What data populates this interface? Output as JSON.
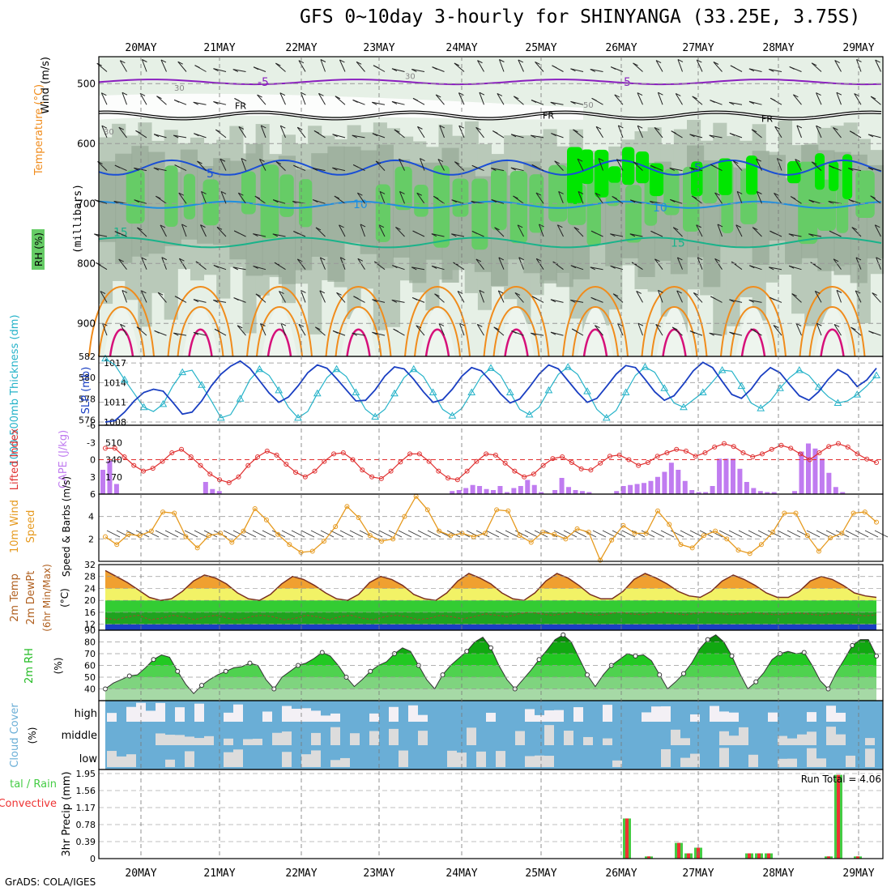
{
  "title": "GFS 0~10day 3-hourly for SHINYANGA (33.25E, 3.75S)",
  "credit": "GrADS: COLA/IGES",
  "colors": {
    "rh_light": "#e6f0e6",
    "rh_mid": "#b9c9b9",
    "rh_dark": "#95a895",
    "rh_green": "#66cc66",
    "rh_bright": "#00e600",
    "temp_purple": "#8a1fbf",
    "temp_blue": "#1a4fd6",
    "temp_lblue": "#1f8fe0",
    "temp_teal": "#19b38a",
    "temp_orange": "#f08c1c",
    "temp_pink": "#d6107a",
    "thickness": "#26b3c9",
    "slp": "#1a3fc2",
    "lifted": "#e03030",
    "cape": "#c07cf0",
    "wind": "#e69a1f",
    "t2m_band_yellow": "#f2f266",
    "t2m_band_green": "#33cc33",
    "t2m_band_dgreen": "#1fa31f",
    "rh2m": "#22bb22",
    "cloud": "#6aaed6",
    "cloud_clear": "#dcdcdc",
    "rain_total": "#44cc44",
    "rain_conv": "#ee3333"
  },
  "chart_data": [
    {
      "panel": "upper-air",
      "type": "heatmap",
      "x_labels": [
        "20MAY",
        "21MAY",
        "22MAY",
        "23MAY",
        "24MAY",
        "25MAY",
        "26MAY",
        "27MAY",
        "28MAY",
        "29MAY"
      ],
      "ylabel": "(millibars)",
      "yticks": [
        500,
        600,
        700,
        800,
        900
      ],
      "ylim": [
        955,
        455
      ],
      "side_labels": [
        "Wind (m/s)",
        "Temperature (°C)",
        "RH (%)"
      ],
      "contour_labels": [
        "-5",
        "FR",
        "5",
        "10",
        "15",
        "30",
        "50"
      ],
      "isotherms": [
        {
          "name": "-5",
          "level_mb": 497
        },
        {
          "name": "FR",
          "level_mb": 553
        },
        {
          "name": "5",
          "level_mb": 640
        },
        {
          "name": "10",
          "level_mb": 702
        },
        {
          "name": "15",
          "level_mb": 765
        }
      ]
    },
    {
      "panel": "thickness-slp",
      "type": "line",
      "left_label": "1000-500mb Thickness (dm)",
      "right_label": "SLP (mb)",
      "left_ticks": [
        576,
        578,
        580,
        582
      ],
      "right_ticks": [
        1008,
        1011,
        1014,
        1017
      ],
      "series": [
        {
          "name": "Thickness",
          "ylim": [
            575.5,
            582
          ],
          "values": [
            581.8,
            581.2,
            579.8,
            578.5,
            577.2,
            576.8,
            577.5,
            579.2,
            580.5,
            580.7,
            579.3,
            577.8,
            576.2,
            576.5,
            578,
            579.8,
            580.8,
            580.2,
            578.8,
            577.2,
            576.2,
            576.8,
            578.5,
            580,
            580.8,
            580.1,
            578.6,
            577,
            576.3,
            577,
            578.5,
            580,
            580.8,
            580.1,
            578.6,
            577,
            576.4,
            577.1,
            578.6,
            580.1,
            580.9,
            580.2,
            578.6,
            577,
            576.5,
            577.2,
            578.8,
            580.3,
            581,
            580.3,
            578.7,
            577,
            576.2,
            576.9,
            578.6,
            580.2,
            581,
            580.5,
            579,
            577.6,
            577.2,
            577.9,
            578.6,
            579.6,
            580.7,
            580.6,
            579.2,
            577.6,
            577.1,
            577.8,
            579,
            580,
            580.7,
            580.2,
            579.1,
            578.2,
            577.6,
            577.8,
            578.4,
            579.2,
            580.2
          ]
        },
        {
          "name": "SLP",
          "ylim": [
            1007.5,
            1018
          ],
          "values": [
            1008,
            1008.2,
            1009.5,
            1011.2,
            1012.5,
            1013,
            1012.7,
            1011,
            1009.2,
            1009.5,
            1011.2,
            1013.5,
            1015.3,
            1016.5,
            1017.3,
            1016.2,
            1014.3,
            1012.4,
            1011,
            1011.8,
            1013.5,
            1015.5,
            1016.7,
            1016.2,
            1014.6,
            1012.9,
            1011.2,
            1011.3,
            1012.9,
            1015,
            1016.4,
            1016.1,
            1014.5,
            1012.6,
            1011,
            1011.4,
            1013,
            1015,
            1016.3,
            1015.8,
            1014.2,
            1012.3,
            1010.9,
            1011.5,
            1013.3,
            1015.3,
            1016.7,
            1016.1,
            1014.3,
            1012.5,
            1011,
            1011.6,
            1013.4,
            1015.3,
            1016.6,
            1016.3,
            1014.5,
            1012.6,
            1011.3,
            1012,
            1013.8,
            1015.8,
            1017.1,
            1016.3,
            1014.2,
            1012.2,
            1011.6,
            1013,
            1015,
            1016.3,
            1015.5,
            1013.7,
            1012,
            1011.3,
            1012.6,
            1014.5,
            1016,
            1015.2,
            1013.4,
            1014.4,
            1016.2
          ]
        }
      ]
    },
    {
      "panel": "lifted-cape",
      "type": "bar",
      "left_label": "Lifted Index",
      "right_label": "CAPE (J/kg)",
      "left_ticks": [
        -6,
        -3,
        0,
        3,
        6
      ],
      "right_ticks": [
        170,
        340,
        510
      ],
      "series": [
        {
          "name": "CAPE",
          "ylim": [
            0,
            680
          ],
          "values": [
            240,
            330,
            100,
            0,
            0,
            0,
            0,
            0,
            0,
            0,
            0,
            0,
            0,
            0,
            0,
            120,
            50,
            30,
            0,
            0,
            0,
            0,
            0,
            0,
            0,
            0,
            0,
            0,
            0,
            0,
            0,
            0,
            0,
            0,
            0,
            0,
            0,
            0,
            0,
            0,
            0,
            0,
            0,
            0,
            0,
            0,
            0,
            0,
            0,
            0,
            0,
            30,
            40,
            60,
            90,
            80,
            50,
            40,
            80,
            20,
            60,
            80,
            140,
            90,
            20,
            0,
            40,
            160,
            70,
            40,
            30,
            20,
            0,
            0,
            0,
            30,
            80,
            90,
            100,
            110,
            130,
            170,
            220,
            310,
            240,
            130,
            40,
            20,
            20,
            80,
            350,
            350,
            350,
            250,
            120,
            60,
            30,
            20,
            20,
            0,
            0,
            30,
            420,
            500,
            450,
            350,
            210,
            70,
            20,
            0,
            0,
            0,
            0,
            0
          ]
        },
        {
          "name": "Lifted Index",
          "ylim": [
            6,
            -6
          ],
          "values": [
            -2,
            -2,
            -0.5,
            1,
            2,
            1.5,
            0.3,
            -1.2,
            -1.8,
            -0.5,
            1,
            2.5,
            3.5,
            4,
            3,
            1,
            -0.5,
            -1.5,
            -0.8,
            0.8,
            2.2,
            3,
            2,
            0.3,
            -1,
            -1.2,
            0,
            1.8,
            3,
            3.3,
            2,
            0.4,
            -1,
            -1,
            0.3,
            2,
            3.2,
            3.5,
            2,
            0.3,
            -1,
            -0.8,
            0.6,
            2,
            3,
            2.5,
            1,
            -0.2,
            -0.5,
            0.5,
            1.6,
            1.8,
            0.6,
            -0.6,
            -0.8,
            0,
            1,
            0.5,
            -0.6,
            -1.2,
            -1.8,
            -1.5,
            -0.6,
            -1.2,
            -2.2,
            -2.8,
            -2.3,
            -1.2,
            -0.5,
            -1,
            -1.8,
            -2.5,
            -2,
            -1,
            0,
            -1.2,
            -2.3,
            -2.8,
            -2.2,
            -1,
            -0.1,
            0.5
          ]
        }
      ]
    },
    {
      "panel": "wind10m",
      "type": "line",
      "left_label": "10m Wind",
      "right_label": "Speed & Barbs (m/s)",
      "right_ticks": [
        2,
        4
      ],
      "series": [
        {
          "name": "Speed",
          "ylim": [
            0,
            6
          ],
          "values": [
            2.2,
            1.5,
            2.4,
            2.3,
            2.7,
            4.4,
            4.3,
            2.2,
            1.2,
            2.3,
            2.5,
            1.7,
            2.7,
            4.7,
            3.7,
            2.4,
            1.5,
            0.8,
            0.9,
            1.8,
            3.1,
            4.9,
            3.9,
            2.3,
            1.8,
            2,
            4,
            5.8,
            4.6,
            2.7,
            2.3,
            2.5,
            2.2,
            2.5,
            4.6,
            4.5,
            2.3,
            1.7,
            2.6,
            2.4,
            2,
            2.9,
            2.6,
            0.1,
            1.9,
            3.2,
            2.5,
            2.5,
            4.5,
            3.3,
            1.5,
            1.2,
            2.3,
            2.7,
            2,
            1,
            0.7,
            1.5,
            2.6,
            4.3,
            4.3,
            2.3,
            0.9,
            2.1,
            2.5,
            4.3,
            4.4,
            3.5
          ]
        }
      ]
    },
    {
      "panel": "temp2m",
      "type": "area",
      "left_label": "2m Temp / 2m DewPt / (6hr Min/Max) (°C)",
      "yticks": [
        12,
        16,
        20,
        24,
        28,
        32
      ],
      "series": [
        {
          "name": "2m Temp",
          "ylim": [
            10,
            32
          ],
          "values": [
            30,
            28,
            26,
            23.5,
            21,
            20,
            20.5,
            23,
            26.5,
            28.5,
            27.5,
            25.5,
            22.5,
            20.5,
            20,
            22,
            25.5,
            28,
            27,
            25,
            22.5,
            20.5,
            20,
            22,
            26,
            28,
            27,
            25,
            22,
            20.5,
            20,
            22.5,
            26.5,
            29,
            27.5,
            25.5,
            22.5,
            20.5,
            20,
            22.5,
            26.5,
            29,
            27.5,
            25,
            22,
            20.5,
            20.5,
            23,
            27,
            29,
            27.5,
            25.5,
            23,
            21.5,
            21,
            23,
            26.5,
            28.5,
            27,
            25,
            22.5,
            21,
            21,
            23,
            26.5,
            28,
            27,
            25,
            22.5,
            21.5,
            21
          ]
        },
        {
          "name": "2m DewPt",
          "ylim": [
            10,
            32
          ],
          "values": [
            14,
            13.5,
            14.5,
            15,
            13.5,
            14,
            15,
            14.5,
            13.5,
            14.5,
            15,
            14,
            13.5,
            14.5,
            15,
            14.5,
            13.5,
            14,
            15,
            14.5,
            13.5,
            14.5,
            15,
            14,
            13.5,
            14.5,
            15,
            14.5,
            13.5,
            14,
            15,
            14.5,
            13.8,
            14.5,
            15.5,
            15,
            14.5,
            15.5,
            16,
            15.5,
            15,
            15.5,
            16,
            15.5,
            15,
            15.5,
            16,
            15.5,
            15.2,
            15.8,
            16,
            15.5,
            15.2,
            15.8,
            16,
            15.6,
            15.2,
            15.5,
            16,
            15.5,
            15.2,
            15.5,
            15.8,
            15.4,
            15,
            15.5,
            15.7,
            15.2,
            14.8,
            15.2
          ]
        }
      ]
    },
    {
      "panel": "rh2m",
      "type": "area",
      "left_label": "2m RH (%)",
      "yticks": [
        40,
        50,
        60,
        70,
        80,
        90
      ],
      "series": [
        {
          "name": "2m RH",
          "ylim": [
            30,
            90
          ],
          "values": [
            40,
            45,
            48,
            51,
            52,
            58,
            65,
            69,
            67,
            55,
            44,
            36,
            43,
            48,
            52,
            55,
            58,
            59,
            62,
            60,
            48,
            40,
            50,
            55,
            60,
            62,
            66,
            71,
            68,
            60,
            50,
            42,
            48,
            55,
            60,
            63,
            70,
            75,
            72,
            60,
            48,
            40,
            52,
            60,
            66,
            72,
            80,
            84,
            75,
            60,
            48,
            40,
            48,
            56,
            65,
            73,
            82,
            86,
            80,
            66,
            52,
            42,
            52,
            60,
            65,
            70,
            68,
            69,
            64,
            52,
            40,
            46,
            53,
            62,
            74,
            82,
            86,
            80,
            68,
            53,
            40,
            46,
            54,
            65,
            70,
            72,
            70,
            71,
            60,
            47,
            40,
            54,
            65,
            77,
            82,
            82,
            68
          ]
        }
      ]
    },
    {
      "panel": "cloud",
      "type": "bar",
      "left_label": "Cloud Cover (%)",
      "levels": [
        "high",
        "middle",
        "low"
      ]
    },
    {
      "panel": "precip",
      "type": "bar",
      "left_label": "Total / Rain / Convective",
      "axis_label": "3hr Precip (mm)",
      "yticks": [
        0,
        0.39,
        0.78,
        1.17,
        1.56,
        1.95
      ],
      "ylim": [
        0,
        1.95
      ],
      "annotation": "Run Total = 4.06",
      "x": [
        "26MAY 03Z",
        "26MAY 09Z",
        "26MAY 21Z",
        "27MAY 00Z",
        "27MAY 03Z",
        "27MAY 18Z",
        "27MAY 21Z",
        "28MAY 00Z",
        "28MAY 21Z",
        "29MAY 00Z",
        "29MAY 09Z"
      ],
      "series": [
        {
          "name": "Total",
          "values": [
            0.92,
            0.05,
            0.36,
            0.12,
            0.25,
            0.12,
            0.12,
            0.12,
            0.05,
            1.92,
            0.05
          ]
        },
        {
          "name": "Convective",
          "values": [
            0.92,
            0.05,
            0.36,
            0.12,
            0.25,
            0.12,
            0.12,
            0.12,
            0.05,
            1.92,
            0.05
          ]
        }
      ]
    }
  ]
}
